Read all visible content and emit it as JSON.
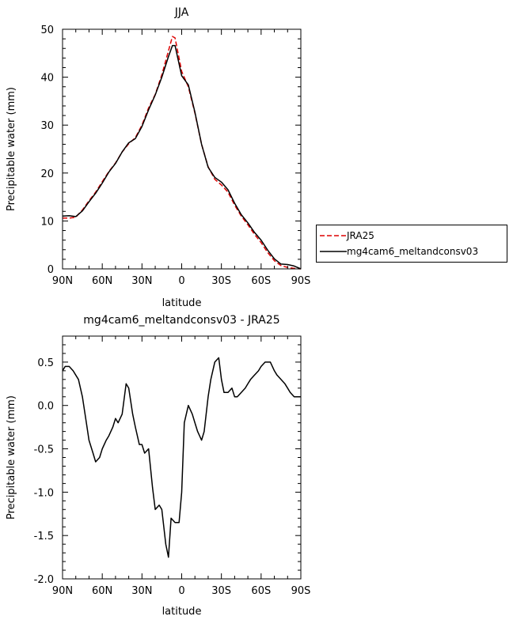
{
  "chart_data": [
    {
      "type": "line",
      "title": "JJA",
      "xlabel": "latitude",
      "ylabel": "Precipitable water (mm)",
      "xlim": [
        90,
        -90
      ],
      "ylim": [
        0,
        50
      ],
      "xticks": [
        90,
        60,
        30,
        0,
        -30,
        -60,
        -90
      ],
      "xtick_labels": [
        "90N",
        "60N",
        "30N",
        "0",
        "30S",
        "60S",
        "90S"
      ],
      "yticks": [
        0,
        10,
        20,
        30,
        40,
        50
      ],
      "ytick_labels": [
        "0",
        "10",
        "20",
        "30",
        "40",
        "50"
      ],
      "grid": false,
      "legend_position": "right, outside",
      "series": [
        {
          "name": "JRA25",
          "style": "dashed",
          "color": "#dd0000",
          "x": [
            90,
            85,
            80,
            75,
            70,
            65,
            60,
            55,
            50,
            45,
            40,
            35,
            30,
            25,
            20,
            15,
            10,
            7,
            5,
            0,
            -5,
            -10,
            -15,
            -20,
            -25,
            -30,
            -35,
            -40,
            -45,
            -50,
            -55,
            -60,
            -65,
            -70,
            -75,
            -80,
            -85,
            -90
          ],
          "y": [
            10.6,
            10.6,
            10.8,
            12.3,
            14.2,
            16.0,
            18.2,
            20.3,
            22.1,
            24.4,
            26.1,
            27.4,
            30.0,
            33.6,
            36.4,
            40.5,
            45.5,
            48.5,
            48.2,
            41.2,
            38.0,
            32.5,
            26.0,
            21.3,
            18.7,
            17.5,
            16.0,
            13.3,
            11.0,
            9.2,
            7.2,
            5.5,
            3.4,
            1.7,
            0.7,
            0.3,
            0.1,
            0.0
          ]
        },
        {
          "name": "mg4cam6_meltandconsv03",
          "style": "solid",
          "color": "#000000",
          "x": [
            90,
            85,
            80,
            75,
            70,
            65,
            60,
            55,
            50,
            45,
            40,
            35,
            30,
            25,
            20,
            15,
            10,
            7,
            5,
            0,
            -5,
            -10,
            -15,
            -20,
            -25,
            -30,
            -35,
            -40,
            -45,
            -50,
            -55,
            -60,
            -65,
            -70,
            -75,
            -80,
            -85,
            -90
          ],
          "y": [
            11.0,
            11.1,
            10.9,
            12.1,
            14.0,
            15.8,
            17.9,
            20.2,
            22.0,
            24.4,
            26.3,
            27.2,
            29.7,
            33.2,
            36.3,
            40.0,
            44.3,
            46.6,
            46.6,
            40.3,
            38.4,
            32.7,
            26.0,
            21.2,
            19.1,
            18.1,
            16.5,
            13.7,
            11.3,
            9.6,
            7.6,
            6.0,
            3.9,
            2.1,
            1.0,
            0.9,
            0.6,
            0.0
          ]
        }
      ]
    },
    {
      "type": "line",
      "title": "mg4cam6_meltandconsv03 - JRA25",
      "xlabel": "latitude",
      "ylabel": "Precipitable water (mm)",
      "xlim": [
        90,
        -90
      ],
      "ylim": [
        -2.0,
        0.8
      ],
      "xticks": [
        90,
        60,
        30,
        0,
        -30,
        -60,
        -90
      ],
      "xtick_labels": [
        "90N",
        "60N",
        "30N",
        "0",
        "30S",
        "60S",
        "90S"
      ],
      "yticks": [
        -2.0,
        -1.5,
        -1.0,
        -0.5,
        0.0,
        0.5
      ],
      "ytick_labels": [
        "-2.0",
        "-1.5",
        "-1.0",
        "-0.5",
        "0.0",
        "0.5"
      ],
      "grid": false,
      "series": [
        {
          "color": "#000000",
          "style": "solid",
          "x": [
            90,
            88,
            85,
            82,
            80,
            78,
            75,
            72,
            70,
            67,
            65,
            62,
            60,
            57,
            55,
            52,
            50,
            48,
            45,
            42,
            40,
            37,
            35,
            32,
            30,
            28,
            25,
            22,
            20,
            17,
            15,
            12,
            10,
            8,
            5,
            2,
            0,
            -2,
            -5,
            -8,
            -10,
            -12,
            -15,
            -17,
            -20,
            -22,
            -25,
            -28,
            -30,
            -32,
            -35,
            -38,
            -40,
            -42,
            -45,
            -48,
            -50,
            -52,
            -55,
            -58,
            -60,
            -63,
            -65,
            -67,
            -70,
            -72,
            -75,
            -78,
            -80,
            -82,
            -85,
            -88,
            -90
          ],
          "y": [
            0.4,
            0.45,
            0.45,
            0.4,
            0.35,
            0.3,
            0.1,
            -0.2,
            -0.4,
            -0.55,
            -0.65,
            -0.6,
            -0.5,
            -0.4,
            -0.35,
            -0.25,
            -0.15,
            -0.2,
            -0.1,
            0.25,
            0.2,
            -0.1,
            -0.25,
            -0.45,
            -0.45,
            -0.55,
            -0.5,
            -0.95,
            -1.2,
            -1.15,
            -1.2,
            -1.6,
            -1.75,
            -1.3,
            -1.35,
            -1.35,
            -1.0,
            -0.2,
            0.0,
            -0.1,
            -0.2,
            -0.3,
            -0.4,
            -0.3,
            0.1,
            0.3,
            0.5,
            0.55,
            0.3,
            0.15,
            0.15,
            0.2,
            0.1,
            0.1,
            0.15,
            0.2,
            0.25,
            0.3,
            0.35,
            0.4,
            0.45,
            0.5,
            0.5,
            0.5,
            0.4,
            0.35,
            0.3,
            0.25,
            0.2,
            0.15,
            0.1,
            0.1,
            0.1
          ]
        }
      ]
    }
  ]
}
